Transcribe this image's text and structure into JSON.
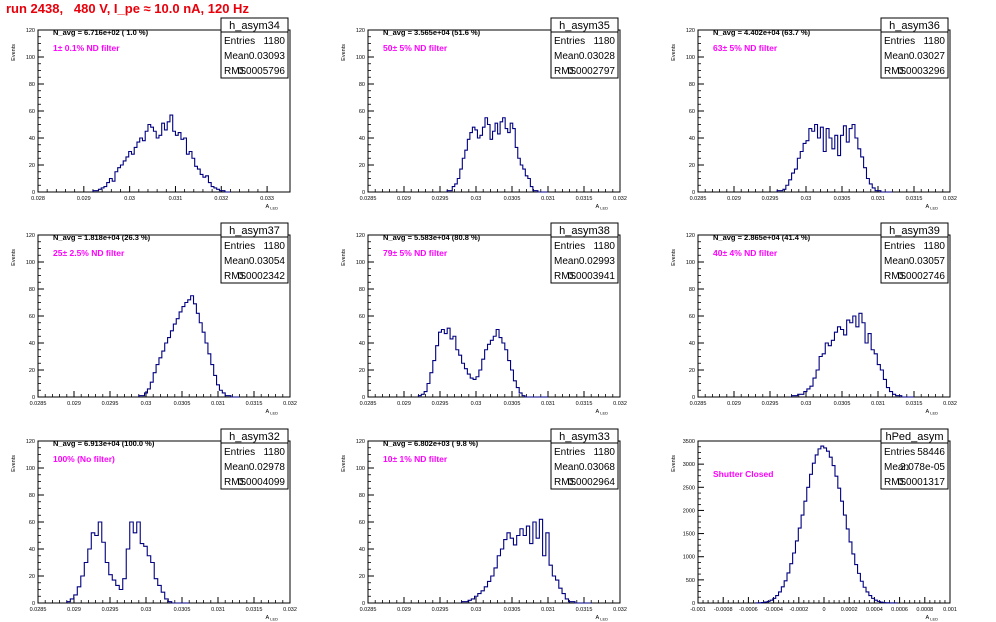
{
  "page_title": "run 2438,   480 V, I_pe ≈ 10.0 nA, 120 Hz",
  "y_axis_label": "Events",
  "x_axis_label": "A_LED",
  "stats_labels": {
    "entries": "Entries",
    "mean": "Mean",
    "rms": "RMS"
  },
  "colors": {
    "title": "#e8000b",
    "annotation": "#ff00ff",
    "histogram": "#000080",
    "axis": "#000000"
  },
  "chart_data": [
    {
      "type": "bar",
      "name": "h_asym34",
      "navg_text": "N_avg = 6.716e+02 ( 1.0 %)",
      "filter_text": "1± 0.1% ND filter",
      "stats": {
        "entries": "1180",
        "mean": "0.03093",
        "rms": "0.0005796"
      },
      "xlim": [
        0.028,
        0.0335
      ],
      "ylim": [
        0,
        120
      ],
      "x_ticks": [
        "0.028",
        "0.029",
        "0.03",
        "0.031",
        "0.032",
        "0.033"
      ],
      "y_ticks": [
        "0",
        "20",
        "40",
        "60",
        "80",
        "100",
        "120"
      ],
      "x_range": [
        0.0292,
        0.0322
      ],
      "values": [
        1,
        1,
        2,
        3,
        4,
        7,
        10,
        8,
        15,
        18,
        20,
        23,
        26,
        30,
        28,
        33,
        37,
        40,
        38,
        45,
        50,
        48,
        45,
        40,
        42,
        51,
        46,
        52,
        57,
        45,
        42,
        44,
        39,
        40,
        28,
        30,
        25,
        19,
        17,
        13,
        11,
        12,
        7,
        4,
        3,
        2,
        1,
        1,
        0,
        0
      ]
    },
    {
      "type": "bar",
      "name": "h_asym35",
      "navg_text": "N_avg = 3.565e+04 (51.6 %)",
      "filter_text": "50± 5% ND filter",
      "stats": {
        "entries": "1180",
        "mean": "0.03028",
        "rms": "0.0002797"
      },
      "xlim": [
        0.0285,
        0.032
      ],
      "ylim": [
        0,
        120
      ],
      "x_ticks": [
        "0.0285",
        "0.029",
        "0.0295",
        "0.03",
        "0.0305",
        "0.031",
        "0.0315",
        "0.032"
      ],
      "y_ticks": [
        "0",
        "20",
        "40",
        "60",
        "80",
        "100",
        "120"
      ],
      "x_range": [
        0.0296,
        0.031
      ],
      "values": [
        1,
        1,
        4,
        6,
        10,
        17,
        25,
        31,
        39,
        44,
        48,
        46,
        40,
        42,
        48,
        55,
        50,
        39,
        45,
        51,
        43,
        52,
        55,
        47,
        44,
        51,
        47,
        33,
        25,
        20,
        17,
        12,
        10,
        4,
        1,
        1,
        0,
        0,
        0,
        0
      ]
    },
    {
      "type": "bar",
      "name": "h_asym36",
      "navg_text": "N_avg = 4.402e+04 (63.7 %)",
      "filter_text": "63± 5% ND filter",
      "stats": {
        "entries": "1180",
        "mean": "0.03027",
        "rms": "0.0003296"
      },
      "xlim": [
        0.0285,
        0.032
      ],
      "ylim": [
        0,
        120
      ],
      "x_ticks": [
        "0.0285",
        "0.029",
        "0.0295",
        "0.03",
        "0.0305",
        "0.031",
        "0.0315",
        "0.032"
      ],
      "y_ticks": [
        "0",
        "20",
        "40",
        "60",
        "80",
        "100",
        "120"
      ],
      "x_range": [
        0.0296,
        0.0312
      ],
      "values": [
        1,
        1,
        2,
        5,
        9,
        14,
        17,
        25,
        30,
        36,
        38,
        47,
        45,
        50,
        40,
        48,
        30,
        47,
        40,
        32,
        42,
        27,
        42,
        49,
        37,
        47,
        50,
        40,
        32,
        26,
        18,
        10,
        6,
        3,
        1,
        1,
        0,
        0,
        0,
        0
      ]
    },
    {
      "type": "bar",
      "name": "h_asym37",
      "navg_text": "N_avg = 1.818e+04 (26.3 %)",
      "filter_text": "25± 2.5% ND filter",
      "stats": {
        "entries": "1180",
        "mean": "0.03054",
        "rms": "0.0002342"
      },
      "xlim": [
        0.0285,
        0.032
      ],
      "ylim": [
        0,
        120
      ],
      "x_ticks": [
        "0.0285",
        "0.029",
        "0.0295",
        "0.03",
        "0.0305",
        "0.031",
        "0.0315",
        "0.032"
      ],
      "y_ticks": [
        "0",
        "20",
        "40",
        "60",
        "80",
        "100",
        "120"
      ],
      "x_range": [
        0.0299,
        0.0313
      ],
      "values": [
        1,
        1,
        3,
        6,
        11,
        18,
        24,
        29,
        34,
        40,
        44,
        49,
        54,
        58,
        63,
        67,
        70,
        72,
        75,
        69,
        62,
        55,
        48,
        40,
        32,
        24,
        16,
        9,
        5,
        3,
        1,
        1,
        0,
        0,
        0
      ]
    },
    {
      "type": "bar",
      "name": "h_asym38",
      "navg_text": "N_avg = 5.583e+04 (80.8 %)",
      "filter_text": "79± 5% ND filter",
      "stats": {
        "entries": "1180",
        "mean": "0.02993",
        "rms": "0.0003941"
      },
      "xlim": [
        0.0285,
        0.032
      ],
      "ylim": [
        0,
        120
      ],
      "x_ticks": [
        "0.0285",
        "0.029",
        "0.0295",
        "0.03",
        "0.0305",
        "0.031",
        "0.0315",
        "0.032"
      ],
      "y_ticks": [
        "0",
        "20",
        "40",
        "60",
        "80",
        "100",
        "120"
      ],
      "x_range": [
        0.0292,
        0.031
      ],
      "values": [
        1,
        2,
        4,
        10,
        18,
        27,
        38,
        48,
        50,
        47,
        51,
        43,
        45,
        35,
        31,
        25,
        21,
        17,
        14,
        13,
        15,
        20,
        28,
        35,
        39,
        42,
        45,
        50,
        44,
        40,
        35,
        27,
        20,
        12,
        7,
        3,
        1,
        0,
        0,
        0,
        0,
        0,
        0,
        0,
        0
      ]
    },
    {
      "type": "bar",
      "name": "h_asym39",
      "navg_text": "N_avg = 2.865e+04 (41.4 %)",
      "filter_text": "40± 4% ND filter",
      "stats": {
        "entries": "1180",
        "mean": "0.03057",
        "rms": "0.0002746"
      },
      "xlim": [
        0.0285,
        0.032
      ],
      "ylim": [
        0,
        120
      ],
      "x_ticks": [
        "0.0285",
        "0.029",
        "0.0295",
        "0.03",
        "0.0305",
        "0.031",
        "0.0315",
        "0.032"
      ],
      "y_ticks": [
        "0",
        "20",
        "40",
        "60",
        "80",
        "100",
        "120"
      ],
      "x_range": [
        0.0298,
        0.0315
      ],
      "values": [
        1,
        1,
        2,
        2,
        4,
        6,
        8,
        14,
        20,
        30,
        32,
        40,
        38,
        42,
        48,
        52,
        50,
        46,
        57,
        55,
        60,
        52,
        62,
        55,
        40,
        47,
        35,
        32,
        24,
        20,
        13,
        7,
        4,
        2,
        1,
        1,
        0,
        0,
        0,
        0
      ]
    },
    {
      "type": "bar",
      "name": "h_asym32",
      "navg_text": "N_avg = 6.913e+04 (100.0 %)",
      "filter_text": "100% (No filter)",
      "stats": {
        "entries": "1180",
        "mean": "0.02978",
        "rms": "0.0004099"
      },
      "xlim": [
        0.0285,
        0.032
      ],
      "ylim": [
        0,
        120
      ],
      "x_ticks": [
        "0.0285",
        "0.029",
        "0.0295",
        "0.03",
        "0.0305",
        "0.031",
        "0.0315",
        "0.032"
      ],
      "y_ticks": [
        "0",
        "20",
        "40",
        "60",
        "80",
        "100",
        "120"
      ],
      "x_range": [
        0.0289,
        0.0306
      ],
      "values": [
        1,
        3,
        6,
        12,
        20,
        30,
        40,
        52,
        50,
        60,
        45,
        30,
        21,
        17,
        13,
        10,
        18,
        40,
        60,
        52,
        60,
        44,
        42,
        35,
        30,
        18,
        13,
        8,
        3,
        1,
        0,
        0,
        0,
        0,
        0
      ]
    },
    {
      "type": "bar",
      "name": "h_asym33",
      "navg_text": "N_avg = 6.802e+03 ( 9.8 %)",
      "filter_text": "10± 1% ND filter",
      "stats": {
        "entries": "1180",
        "mean": "0.03068",
        "rms": "0.0002964"
      },
      "xlim": [
        0.0285,
        0.032
      ],
      "ylim": [
        0,
        120
      ],
      "x_ticks": [
        "0.0285",
        "0.029",
        "0.0295",
        "0.03",
        "0.0305",
        "0.031",
        "0.0315",
        "0.032"
      ],
      "y_ticks": [
        "0",
        "20",
        "40",
        "60",
        "80",
        "100",
        "120"
      ],
      "x_range": [
        0.0298,
        0.0316
      ],
      "values": [
        1,
        1,
        2,
        3,
        5,
        7,
        9,
        12,
        16,
        20,
        26,
        35,
        40,
        47,
        52,
        48,
        43,
        50,
        55,
        50,
        57,
        44,
        60,
        48,
        62,
        35,
        52,
        28,
        20,
        17,
        11,
        7,
        3,
        1,
        1,
        0,
        0,
        0,
        0,
        0
      ]
    },
    {
      "type": "bar",
      "name": "hPed_asym",
      "navg_text": "",
      "filter_text": "Shutter Closed",
      "stats": {
        "entries": "58446",
        "mean": "2.078e-05",
        "rms": "0.0001317"
      },
      "xlim": [
        -0.001,
        0.001
      ],
      "ylim": [
        0,
        3500
      ],
      "x_ticks": [
        "-0.001",
        "-0.0008",
        "-0.0006",
        "-0.0004",
        "-0.0002",
        "0",
        "0.0002",
        "0.0004",
        "0.0006",
        "0.0008",
        "0.001"
      ],
      "y_ticks": [
        "0",
        "500",
        "1000",
        "1500",
        "2000",
        "2500",
        "3000",
        "3500"
      ],
      "x_range": [
        -0.00054,
        0.00058
      ],
      "values": [
        2,
        5,
        10,
        20,
        35,
        60,
        100,
        160,
        240,
        350,
        480,
        650,
        850,
        1080,
        1340,
        1620,
        1900,
        2200,
        2500,
        2780,
        3020,
        3200,
        3330,
        3390,
        3350,
        3280,
        3150,
        2970,
        2740,
        2480,
        2200,
        1900,
        1600,
        1320,
        1060,
        830,
        640,
        470,
        340,
        240,
        160,
        100,
        60,
        35,
        18,
        8,
        4,
        2,
        1,
        1
      ]
    }
  ]
}
